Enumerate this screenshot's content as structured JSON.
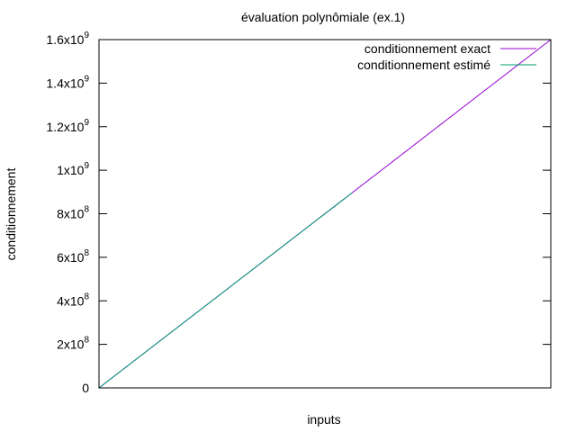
{
  "chart_data": {
    "type": "line",
    "title": "évaluation polynômiale (ex.1)",
    "xlabel": "inputs",
    "ylabel": "conditionnement",
    "x_ticks_shown": false,
    "grid": false,
    "legend_position": "top-right",
    "xlim": [
      0,
      1
    ],
    "ylim": [
      0,
      1600000000
    ],
    "y_ticks": [
      {
        "value": 0,
        "mantissa": "0",
        "exponent": ""
      },
      {
        "value": 200000000,
        "mantissa": "2x10",
        "exponent": "8"
      },
      {
        "value": 400000000,
        "mantissa": "4x10",
        "exponent": "8"
      },
      {
        "value": 600000000,
        "mantissa": "6x10",
        "exponent": "8"
      },
      {
        "value": 800000000,
        "mantissa": "8x10",
        "exponent": "8"
      },
      {
        "value": 1000000000,
        "mantissa": "1x10",
        "exponent": "9"
      },
      {
        "value": 1200000000,
        "mantissa": "1.2x10",
        "exponent": "9"
      },
      {
        "value": 1400000000,
        "mantissa": "1.4x10",
        "exponent": "9"
      },
      {
        "value": 1600000000,
        "mantissa": "1.6x10",
        "exponent": "9"
      }
    ],
    "series": [
      {
        "name": "conditionnement exact",
        "color": "#9400d3",
        "x": [
          0,
          1
        ],
        "values": [
          0,
          1600000000
        ]
      },
      {
        "name": "conditionnement estimé",
        "color": "#009e73",
        "x": [
          0,
          0.56
        ],
        "values": [
          0,
          896000000
        ]
      }
    ]
  }
}
